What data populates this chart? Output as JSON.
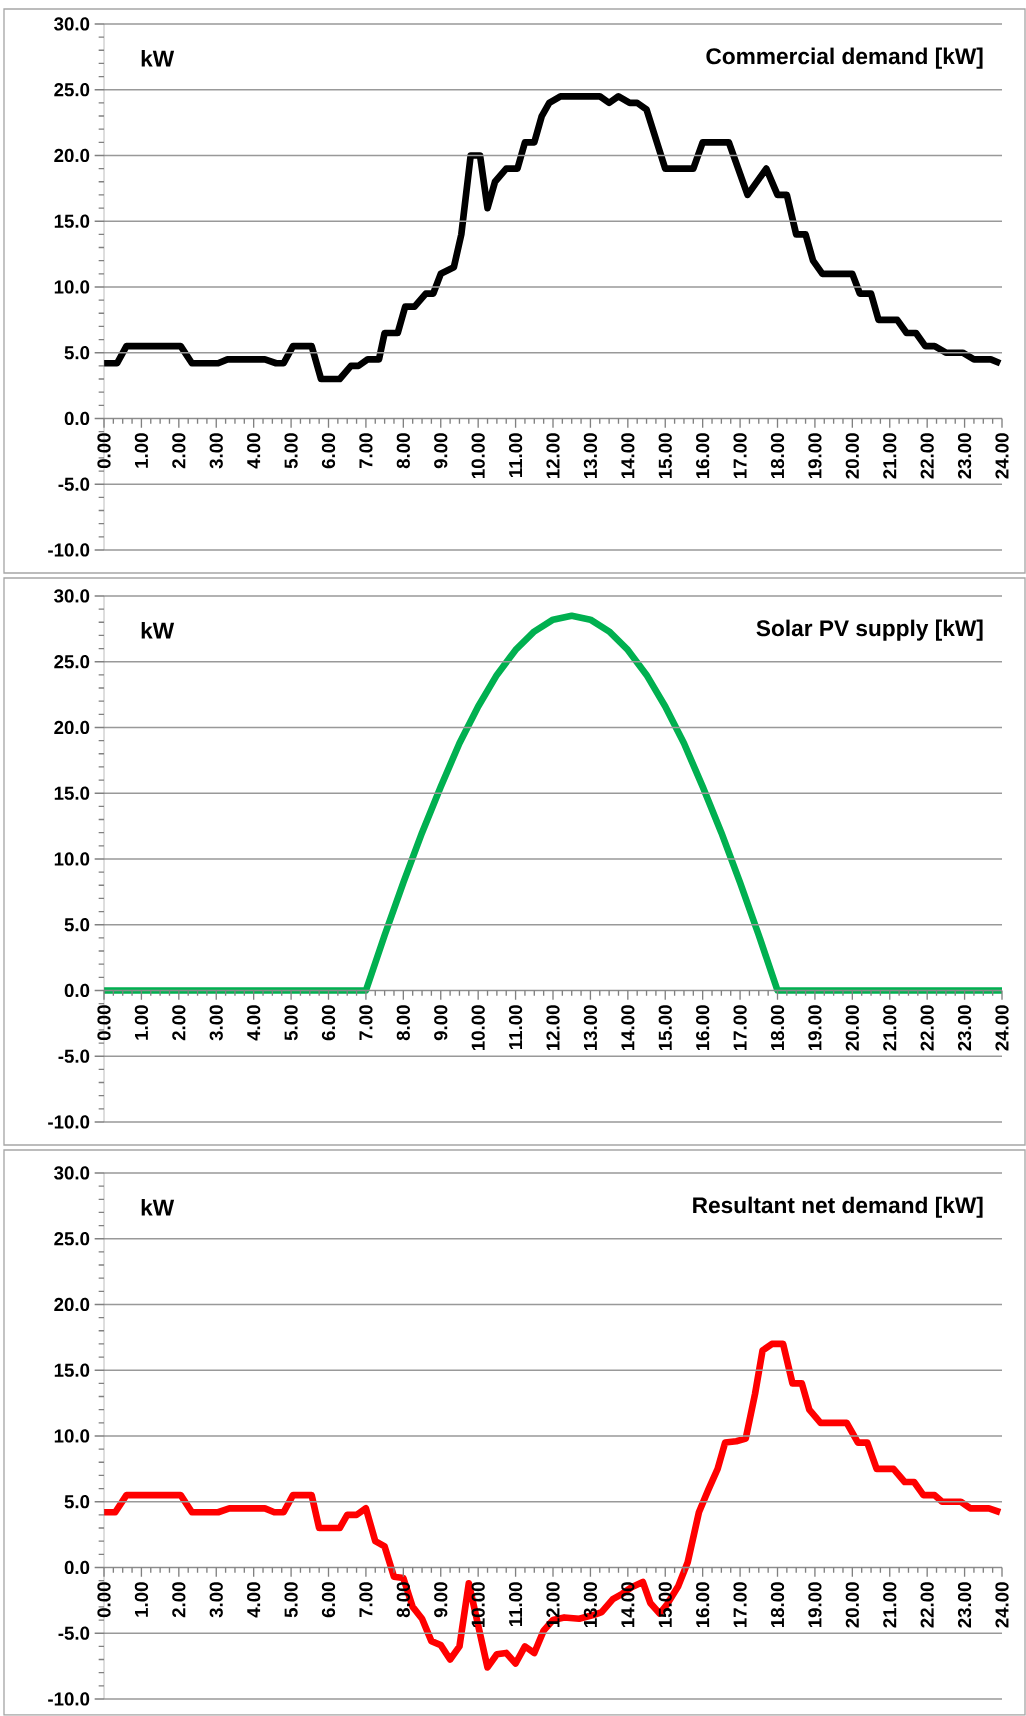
{
  "chart_data": [
    {
      "type": "line",
      "title": "Commercial demand [kW]",
      "annotations": [
        "kW"
      ],
      "grid": "y",
      "x": [
        0,
        0.35,
        0.6,
        2.05,
        2.35,
        3.05,
        3.3,
        4.3,
        4.6,
        4.8,
        5.05,
        5.55,
        5.8,
        6.3,
        6.6,
        6.8,
        7.05,
        7.35,
        7.5,
        7.85,
        8.05,
        8.3,
        8.6,
        8.8,
        9.0,
        9.35,
        9.55,
        9.8,
        10.05,
        10.25,
        10.45,
        10.75,
        11.05,
        11.25,
        11.5,
        11.7,
        11.9,
        12.2,
        13.25,
        13.5,
        13.75,
        14.05,
        14.25,
        14.5,
        15.0,
        15.75,
        16.0,
        16.7,
        17.2,
        17.7,
        18.0,
        18.25,
        18.5,
        18.75,
        18.95,
        19.2,
        20.0,
        20.2,
        20.5,
        20.7,
        21.2,
        21.45,
        21.7,
        21.95,
        22.2,
        22.5,
        22.95,
        23.25,
        23.7,
        23.95
      ],
      "series": [
        {
          "color": "#000000",
          "values": [
            4.2,
            4.2,
            5.5,
            5.5,
            4.2,
            4.2,
            4.5,
            4.5,
            4.2,
            4.2,
            5.5,
            5.5,
            3.0,
            3.0,
            4.0,
            4.0,
            4.5,
            4.5,
            6.5,
            6.5,
            8.5,
            8.5,
            9.5,
            9.5,
            11,
            11.5,
            14,
            20,
            20,
            16,
            18,
            19,
            19,
            21,
            21,
            23,
            24,
            24.5,
            24.5,
            24,
            24.5,
            24,
            24,
            23.5,
            19,
            19,
            21,
            21,
            17,
            19,
            17,
            17,
            14,
            14,
            12,
            11,
            11,
            9.5,
            9.5,
            7.5,
            7.5,
            6.5,
            6.5,
            5.5,
            5.5,
            5,
            5,
            4.5,
            4.5,
            4.2
          ]
        }
      ],
      "xlim": [
        0,
        24
      ],
      "ylim": [
        -10,
        30
      ],
      "xticks": [
        {
          "value": 0,
          "label": "0.00"
        },
        {
          "value": 1,
          "label": "1.00"
        },
        {
          "value": 2,
          "label": "2.00"
        },
        {
          "value": 3,
          "label": "3.00"
        },
        {
          "value": 4,
          "label": "4.00"
        },
        {
          "value": 5,
          "label": "5.00"
        },
        {
          "value": 6,
          "label": "6.00"
        },
        {
          "value": 7,
          "label": "7.00"
        },
        {
          "value": 8,
          "label": "8.00"
        },
        {
          "value": 9,
          "label": "9.00"
        },
        {
          "value": 10,
          "label": "10.00"
        },
        {
          "value": 11,
          "label": "11.00"
        },
        {
          "value": 12,
          "label": "12.00"
        },
        {
          "value": 13,
          "label": "13.00"
        },
        {
          "value": 14,
          "label": "14.00"
        },
        {
          "value": 15,
          "label": "15.00"
        },
        {
          "value": 16,
          "label": "16.00"
        },
        {
          "value": 17,
          "label": "17.00"
        },
        {
          "value": 18,
          "label": "18.00"
        },
        {
          "value": 19,
          "label": "19.00"
        },
        {
          "value": 20,
          "label": "20.00"
        },
        {
          "value": 21,
          "label": "21.00"
        },
        {
          "value": 22,
          "label": "22.00"
        },
        {
          "value": 23,
          "label": "23.00"
        },
        {
          "value": 24,
          "label": "24.00"
        }
      ],
      "yticks": [
        {
          "value": -10,
          "label": "-10.0"
        },
        {
          "value": -5,
          "label": "-5.0"
        },
        {
          "value": 0,
          "label": "0.0"
        },
        {
          "value": 5,
          "label": "5.0"
        },
        {
          "value": 10,
          "label": "10.0"
        },
        {
          "value": 15,
          "label": "15.0"
        },
        {
          "value": 20,
          "label": "20.0"
        },
        {
          "value": 25,
          "label": "25.0"
        },
        {
          "value": 30,
          "label": "30.0"
        }
      ]
    },
    {
      "type": "line",
      "title": "Solar PV supply [kW]",
      "annotations": [
        "kW"
      ],
      "grid": "y",
      "x": [
        0,
        7,
        7.5,
        8,
        8.5,
        9,
        9.5,
        10,
        10.5,
        11,
        11.5,
        12,
        12.5,
        13,
        13.5,
        14,
        14.5,
        15,
        15.5,
        16,
        16.5,
        17,
        17.5,
        18,
        24
      ],
      "series": [
        {
          "color": "#00b050",
          "values": [
            0,
            0,
            4.2,
            8.2,
            12,
            15.5,
            18.8,
            21.6,
            24,
            25.9,
            27.3,
            28.2,
            28.5,
            28.2,
            27.3,
            25.9,
            24,
            21.6,
            18.8,
            15.5,
            12,
            8.2,
            4.2,
            0,
            0
          ]
        }
      ],
      "xlim": [
        0,
        24
      ],
      "ylim": [
        -10,
        30
      ],
      "xticks": [
        {
          "value": 0,
          "label": "0.00"
        },
        {
          "value": 1,
          "label": "1.00"
        },
        {
          "value": 2,
          "label": "2.00"
        },
        {
          "value": 3,
          "label": "3.00"
        },
        {
          "value": 4,
          "label": "4.00"
        },
        {
          "value": 5,
          "label": "5.00"
        },
        {
          "value": 6,
          "label": "6.00"
        },
        {
          "value": 7,
          "label": "7.00"
        },
        {
          "value": 8,
          "label": "8.00"
        },
        {
          "value": 9,
          "label": "9.00"
        },
        {
          "value": 10,
          "label": "10.00"
        },
        {
          "value": 11,
          "label": "11.00"
        },
        {
          "value": 12,
          "label": "12.00"
        },
        {
          "value": 13,
          "label": "13.00"
        },
        {
          "value": 14,
          "label": "14.00"
        },
        {
          "value": 15,
          "label": "15.00"
        },
        {
          "value": 16,
          "label": "16.00"
        },
        {
          "value": 17,
          "label": "17.00"
        },
        {
          "value": 18,
          "label": "18.00"
        },
        {
          "value": 19,
          "label": "19.00"
        },
        {
          "value": 20,
          "label": "20.00"
        },
        {
          "value": 21,
          "label": "21.00"
        },
        {
          "value": 22,
          "label": "22.00"
        },
        {
          "value": 23,
          "label": "23.00"
        },
        {
          "value": 24,
          "label": "24.00"
        }
      ],
      "yticks": [
        {
          "value": -10,
          "label": "-10.0"
        },
        {
          "value": -5,
          "label": "-5.0"
        },
        {
          "value": 0,
          "label": "0.0"
        },
        {
          "value": 5,
          "label": "5.0"
        },
        {
          "value": 10,
          "label": "10.0"
        },
        {
          "value": 15,
          "label": "15.0"
        },
        {
          "value": 20,
          "label": "20.0"
        },
        {
          "value": 25,
          "label": "25.0"
        },
        {
          "value": 30,
          "label": "30.0"
        }
      ]
    },
    {
      "type": "line",
      "title": "Resultant net demand  [kW]",
      "annotations": [
        "kW"
      ],
      "grid": "y",
      "x": [
        0,
        0.3,
        0.6,
        2.05,
        2.35,
        3.05,
        3.35,
        4.3,
        4.55,
        4.8,
        5.05,
        5.55,
        5.75,
        6.3,
        6.5,
        6.75,
        7.0,
        7.25,
        7.5,
        7.75,
        8.0,
        8.25,
        8.5,
        8.75,
        9.0,
        9.25,
        9.5,
        9.75,
        10.25,
        10.5,
        10.75,
        11.0,
        11.25,
        11.5,
        11.75,
        12.0,
        12.3,
        12.7,
        13.1,
        13.3,
        13.6,
        13.85,
        14.1,
        14.4,
        14.6,
        14.85,
        15.05,
        15.35,
        15.6,
        15.9,
        16.15,
        16.4,
        16.6,
        16.9,
        17.15,
        17.4,
        17.6,
        17.85,
        18.15,
        18.4,
        18.65,
        18.85,
        19.15,
        19.85,
        20.15,
        20.4,
        20.65,
        21.1,
        21.4,
        21.65,
        21.9,
        22.2,
        22.4,
        22.9,
        23.15,
        23.65,
        23.95
      ],
      "series": [
        {
          "color": "#ff0000",
          "values": [
            4.2,
            4.2,
            5.5,
            5.5,
            4.2,
            4.2,
            4.5,
            4.5,
            4.2,
            4.2,
            5.5,
            5.5,
            3.0,
            3.0,
            4.0,
            4.0,
            4.5,
            2.0,
            1.6,
            -0.7,
            -0.8,
            -3.0,
            -3.9,
            -5.6,
            -5.9,
            -7.0,
            -6.0,
            -1.2,
            -7.6,
            -6.6,
            -6.5,
            -7.3,
            -6.0,
            -6.5,
            -4.8,
            -4.0,
            -3.8,
            -3.9,
            -3.6,
            -3.4,
            -2.4,
            -2.0,
            -1.5,
            -1.1,
            -2.7,
            -3.5,
            -2.8,
            -1.4,
            0.4,
            4.2,
            5.9,
            7.5,
            9.5,
            9.6,
            9.8,
            13.2,
            16.5,
            17.0,
            17.0,
            14.0,
            14.0,
            12.0,
            11.0,
            11.0,
            9.5,
            9.5,
            7.5,
            7.5,
            6.5,
            6.5,
            5.5,
            5.5,
            5.0,
            5.0,
            4.5,
            4.5,
            4.2
          ]
        }
      ],
      "xlim": [
        0,
        24
      ],
      "ylim": [
        -10,
        30
      ],
      "xticks": [
        {
          "value": 0,
          "label": "0.00"
        },
        {
          "value": 1,
          "label": "1.00"
        },
        {
          "value": 2,
          "label": "2.00"
        },
        {
          "value": 3,
          "label": "3.00"
        },
        {
          "value": 4,
          "label": "4.00"
        },
        {
          "value": 5,
          "label": "5.00"
        },
        {
          "value": 6,
          "label": "6.00"
        },
        {
          "value": 7,
          "label": "7.00"
        },
        {
          "value": 8,
          "label": "8.00"
        },
        {
          "value": 9,
          "label": "9.00"
        },
        {
          "value": 10,
          "label": "10.00"
        },
        {
          "value": 11,
          "label": "11.00"
        },
        {
          "value": 12,
          "label": "12.00"
        },
        {
          "value": 13,
          "label": "13.00"
        },
        {
          "value": 14,
          "label": "14.00"
        },
        {
          "value": 15,
          "label": "15.00"
        },
        {
          "value": 16,
          "label": "16.00"
        },
        {
          "value": 17,
          "label": "17.00"
        },
        {
          "value": 18,
          "label": "18.00"
        },
        {
          "value": 19,
          "label": "19.00"
        },
        {
          "value": 20,
          "label": "20.00"
        },
        {
          "value": 21,
          "label": "21.00"
        },
        {
          "value": 22,
          "label": "22.00"
        },
        {
          "value": 23,
          "label": "23.00"
        },
        {
          "value": 24,
          "label": "24.00"
        }
      ],
      "yticks": [
        {
          "value": -10,
          "label": "-10.0"
        },
        {
          "value": -5,
          "label": "-5.0"
        },
        {
          "value": 0,
          "label": "0.0"
        },
        {
          "value": 5,
          "label": "5.0"
        },
        {
          "value": 10,
          "label": "10.0"
        },
        {
          "value": 15,
          "label": "15.0"
        },
        {
          "value": 20,
          "label": "20.0"
        },
        {
          "value": 25,
          "label": "25.0"
        },
        {
          "value": 30,
          "label": "30.0"
        }
      ]
    }
  ]
}
